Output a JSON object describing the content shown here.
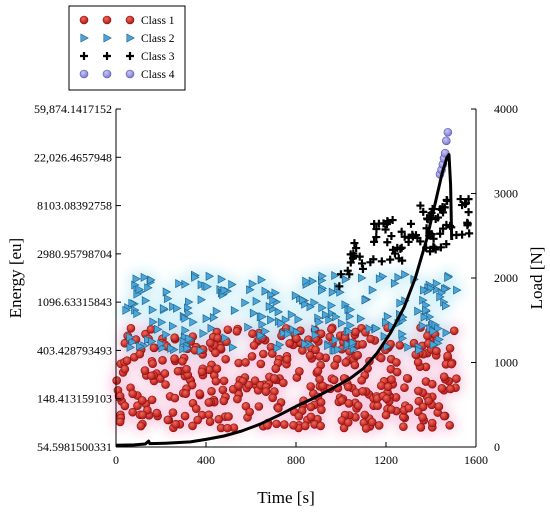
{
  "chart_data": {
    "type": "scatter",
    "title": "",
    "xlabel": "Time [s]",
    "ylabel": "Energy [eu]",
    "y2label": "Load [N]",
    "xlim": [
      0,
      1600
    ],
    "ylim": [
      54.5981500331,
      59874.1417152
    ],
    "y_scale": "log",
    "y2lim": [
      0,
      4000
    ],
    "grid": false,
    "legend_position": "top-left",
    "x_ticks": [
      "0",
      "400",
      "800",
      "1200",
      "1600"
    ],
    "x_tick_values": [
      0,
      400,
      800,
      1200,
      1600
    ],
    "y_ticks": [
      "54.5981500331",
      "148.413159103",
      "403.428793493",
      "1096.63315843",
      "2980.95798704",
      "8103.08392758",
      "22,026.4657948",
      "59,874.1417152"
    ],
    "y_tick_values": [
      54.5981500331,
      148.413159103,
      403.428793493,
      1096.63315843,
      2980.95798704,
      8103.08392758,
      22026.4657948,
      59874.1417152
    ],
    "y2_ticks": [
      "0",
      "1000",
      "2000",
      "3000",
      "4000"
    ],
    "y2_tick_values": [
      0,
      1000,
      2000,
      3000,
      4000
    ],
    "series": [
      {
        "name": "Class 1",
        "marker": "circle",
        "color": "#d42020",
        "count": 420,
        "x_range": [
          0,
          1520
        ],
        "y_range": [
          80,
          650
        ]
      },
      {
        "name": "Class 2",
        "marker": "triangle",
        "color": "#4aa6d8",
        "count": 230,
        "x_range": [
          40,
          1520
        ],
        "y_range": [
          400,
          2000
        ]
      },
      {
        "name": "Class 3",
        "marker": "plus",
        "color": "#000000",
        "count": 95,
        "x_range": [
          990,
          1570
        ],
        "y_range": [
          1500,
          13000
        ]
      },
      {
        "name": "Class 4",
        "marker": "circle",
        "color": "#9c9be0",
        "count": 7,
        "points": [
          [
            1440,
            15500
          ],
          [
            1447,
            17000
          ],
          [
            1453,
            19000
          ],
          [
            1458,
            21500
          ],
          [
            1463,
            24000
          ],
          [
            1468,
            31000
          ],
          [
            1475,
            37000
          ]
        ]
      }
    ],
    "load_curve": {
      "axis": "y2",
      "color": "#000000",
      "points": [
        [
          0,
          20
        ],
        [
          80,
          25
        ],
        [
          130,
          35
        ],
        [
          145,
          70
        ],
        [
          150,
          40
        ],
        [
          220,
          45
        ],
        [
          260,
          50
        ],
        [
          330,
          60
        ],
        [
          400,
          90
        ],
        [
          480,
          130
        ],
        [
          560,
          190
        ],
        [
          640,
          270
        ],
        [
          720,
          370
        ],
        [
          800,
          480
        ],
        [
          880,
          580
        ],
        [
          960,
          690
        ],
        [
          1040,
          810
        ],
        [
          1100,
          930
        ],
        [
          1160,
          1110
        ],
        [
          1220,
          1350
        ],
        [
          1280,
          1650
        ],
        [
          1330,
          2000
        ],
        [
          1380,
          2450
        ],
        [
          1420,
          2900
        ],
        [
          1450,
          3250
        ],
        [
          1470,
          3420
        ],
        [
          1480,
          3460
        ],
        [
          1487,
          3100
        ],
        [
          1492,
          2450
        ]
      ]
    }
  }
}
